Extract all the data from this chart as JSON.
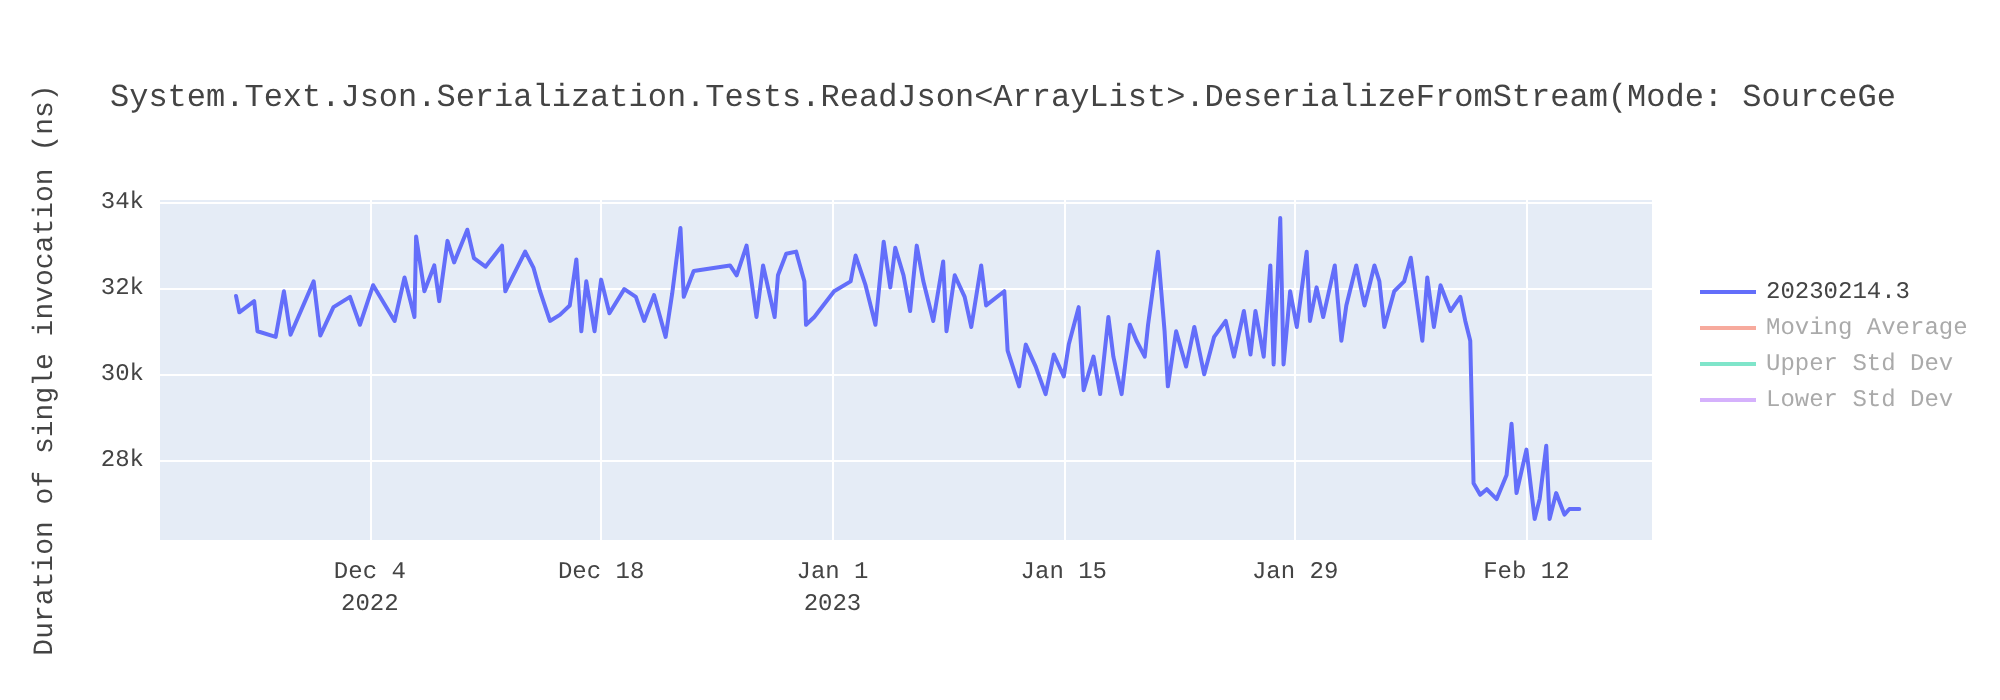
{
  "chart_data": {
    "type": "line",
    "title": "System.Text.Json.Serialization.Tests.ReadJson<ArrayList>.DeserializeFromStream(Mode: SourceGe",
    "ylabel": "Duration of single invocation (ns)",
    "xlim": [
      "2022-11-21T07:12",
      "2023-02-19T14:24"
    ],
    "xticks": [
      {
        "value": "2022-12-04",
        "label": "Dec 4\n2022"
      },
      {
        "value": "2022-12-18",
        "label": "Dec 18"
      },
      {
        "value": "2023-01-01",
        "label": "Jan 1\n2023"
      },
      {
        "value": "2023-01-15",
        "label": "Jan 15"
      },
      {
        "value": "2023-01-29",
        "label": "Jan 29"
      },
      {
        "value": "2023-02-12",
        "label": "Feb 12"
      }
    ],
    "ylim": [
      26150,
      34050
    ],
    "yticks": [
      {
        "value": 28000,
        "label": "28k"
      },
      {
        "value": 30000,
        "label": "30k"
      },
      {
        "value": 32000,
        "label": "32k"
      },
      {
        "value": 34000,
        "label": "34k"
      }
    ],
    "grid": true,
    "legend": "top right",
    "marker": "none",
    "line_style": "solid",
    "series": [
      {
        "name": "20230214.3",
        "color": "#636efa",
        "x": [
          "2022-11-25T21:36",
          "2022-11-26T02:24",
          "2022-11-27T00:00",
          "2022-11-27T04:48",
          "2022-11-28T07:12",
          "2022-11-28T19:12",
          "2022-11-29T04:48",
          "2022-11-30T14:24",
          "2022-12-01T00:00",
          "2022-12-01T19:12",
          "2022-12-02T19:12",
          "2022-12-03T09:36",
          "2022-12-04T04:48",
          "2022-12-05T12:00",
          "2022-12-06T02:24",
          "2022-12-06T16:48",
          "2022-12-06T19:12",
          "2022-12-07T07:12",
          "2022-12-07T21:36",
          "2022-12-08T04:48",
          "2022-12-08T16:48",
          "2022-12-09T02:24",
          "2022-12-09T21:36",
          "2022-12-10T07:12",
          "2022-12-11T00:00",
          "2022-12-12T00:00",
          "2022-12-12T04:48",
          "2022-12-13T09:36",
          "2022-12-13T21:36",
          "2022-12-14T07:12",
          "2022-12-14T21:36",
          "2022-12-15T12:00",
          "2022-12-16T02:24",
          "2022-12-16T12:00",
          "2022-12-16T19:12",
          "2022-12-17T02:24",
          "2022-12-17T14:24",
          "2022-12-18T00:00",
          "2022-12-18T12:00",
          "2022-12-19T09:36",
          "2022-12-20T02:24",
          "2022-12-20T14:24",
          "2022-12-21T04:48",
          "2022-12-21T21:36",
          "2022-12-22T07:12",
          "2022-12-22T19:12",
          "2022-12-23T00:00",
          "2022-12-23T14:24",
          "2022-12-25T19:12",
          "2022-12-26T04:48",
          "2022-12-26T19:12",
          "2022-12-27T09:36",
          "2022-12-27T19:12",
          "2022-12-28T12:00",
          "2022-12-28T16:48",
          "2022-12-29T04:48",
          "2022-12-29T19:12",
          "2022-12-30T07:12",
          "2022-12-30T09:36",
          "2022-12-30T21:36",
          "2023-01-01T02:24",
          "2023-01-02T02:24",
          "2023-01-02T09:36",
          "2023-01-03T00:00",
          "2023-01-03T14:24",
          "2023-01-04T02:24",
          "2023-01-04T12:00",
          "2023-01-04T19:12",
          "2023-01-05T07:12",
          "2023-01-05T16:48",
          "2023-01-06T02:24",
          "2023-01-06T12:00",
          "2023-01-07T02:24",
          "2023-01-07T16:48",
          "2023-01-07T21:36",
          "2023-01-08T09:36",
          "2023-01-09T00:00",
          "2023-01-09T09:36",
          "2023-01-10T00:00",
          "2023-01-10T07:12",
          "2023-01-11T09:36",
          "2023-01-11T14:24",
          "2023-01-12T07:12",
          "2023-01-12T16:48",
          "2023-01-13T07:12",
          "2023-01-13T21:36",
          "2023-01-14T09:36",
          "2023-01-15T00:00",
          "2023-01-15T07:12",
          "2023-01-15T21:36",
          "2023-01-16T04:48",
          "2023-01-16T19:12",
          "2023-01-17T04:48",
          "2023-01-17T16:48",
          "2023-01-18T00:00",
          "2023-01-18T12:00",
          "2023-01-19T00:00",
          "2023-01-19T09:36",
          "2023-01-19T21:36",
          "2023-01-20T02:24",
          "2023-01-20T16:48",
          "2023-01-21T02:24",
          "2023-01-21T07:12",
          "2023-01-21T19:12",
          "2023-01-22T09:36",
          "2023-01-22T21:36",
          "2023-01-23T12:00",
          "2023-01-24T02:24",
          "2023-01-24T19:12",
          "2023-01-25T07:12",
          "2023-01-25T21:36",
          "2023-01-26T07:12",
          "2023-01-26T14:24",
          "2023-01-27T02:24",
          "2023-01-27T12:00",
          "2023-01-27T16:48",
          "2023-01-28T02:24",
          "2023-01-28T07:12",
          "2023-01-28T16:48",
          "2023-01-29T02:24",
          "2023-01-29T16:48",
          "2023-01-29T21:36",
          "2023-01-30T07:12",
          "2023-01-30T16:48",
          "2023-01-31T09:36",
          "2023-01-31T19:12",
          "2023-02-01T02:24",
          "2023-02-01T16:48",
          "2023-02-02T04:48",
          "2023-02-02T19:12",
          "2023-02-03T02:24",
          "2023-02-03T09:36",
          "2023-02-04T00:00",
          "2023-02-04T14:24",
          "2023-02-05T00:00",
          "2023-02-05T16:48",
          "2023-02-06T00:00",
          "2023-02-06T09:36",
          "2023-02-06T19:12",
          "2023-02-07T09:36",
          "2023-02-08T00:00",
          "2023-02-08T07:12",
          "2023-02-08T14:24",
          "2023-02-08T19:12",
          "2023-02-09T04:48",
          "2023-02-09T14:24",
          "2023-02-10T04:48",
          "2023-02-10T19:12",
          "2023-02-11T02:24",
          "2023-02-11T09:36",
          "2023-02-12T00:00",
          "2023-02-12T12:00",
          "2023-02-12T19:12",
          "2023-02-13T04:48",
          "2023-02-13T09:36",
          "2023-02-13T19:12",
          "2023-02-14T07:12",
          "2023-02-14T14:24",
          "2023-02-15T04:48"
        ],
        "values": [
          31820,
          31440,
          31700,
          31000,
          30870,
          31930,
          30920,
          32160,
          30900,
          31560,
          31800,
          31150,
          32070,
          31240,
          32250,
          31330,
          33200,
          31930,
          32530,
          31700,
          33100,
          32600,
          33360,
          32700,
          32500,
          32990,
          31930,
          32850,
          32480,
          31930,
          31240,
          31380,
          31600,
          32670,
          31000,
          32160,
          31000,
          32200,
          31420,
          31980,
          31800,
          31240,
          31840,
          30870,
          31880,
          33400,
          31800,
          32400,
          32530,
          32300,
          32990,
          31330,
          32530,
          31330,
          32300,
          32800,
          32850,
          32160,
          31150,
          31330,
          31930,
          32160,
          32760,
          32070,
          31150,
          33080,
          32020,
          32940,
          32300,
          31470,
          32990,
          32160,
          31240,
          32620,
          31000,
          32300,
          31800,
          31100,
          32530,
          31600,
          31930,
          30550,
          29720,
          30690,
          30180,
          29540,
          30460,
          29950,
          30690,
          31560,
          29630,
          30410,
          29540,
          31330,
          30410,
          29540,
          31150,
          30780,
          30410,
          31150,
          32850,
          31000,
          29720,
          31000,
          30180,
          31100,
          30000,
          30870,
          31240,
          30410,
          31470,
          30460,
          31470,
          30410,
          32530,
          30230,
          33630,
          30230,
          31930,
          31100,
          32850,
          31240,
          32020,
          31330,
          32530,
          30780,
          31600,
          32530,
          31600,
          32530,
          32160,
          31100,
          31930,
          32160,
          32710,
          30780,
          32250,
          31100,
          32070,
          31470,
          31800,
          31240,
          30780,
          27470,
          27200,
          27330,
          27100,
          27660,
          28850,
          27240,
          28250,
          26640,
          27100,
          28340,
          26640,
          27240,
          26740,
          26870,
          26870
        ]
      },
      {
        "name": "Moving Average",
        "color": "#ef553b"
      },
      {
        "name": "Upper Std Dev",
        "color": "#00cc96"
      },
      {
        "name": "Lower Std Dev",
        "color": "#ab63fa"
      }
    ]
  }
}
